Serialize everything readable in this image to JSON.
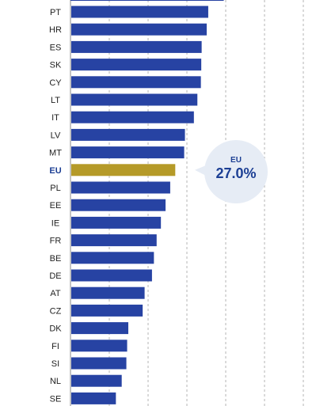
{
  "chart_data": {
    "type": "bar",
    "orientation": "horizontal",
    "categories": [
      "PT",
      "HR",
      "ES",
      "SK",
      "CY",
      "LT",
      "IT",
      "LV",
      "MT",
      "EU",
      "PL",
      "EE",
      "IE",
      "FR",
      "BE",
      "DE",
      "AT",
      "CZ",
      "DK",
      "FI",
      "SI",
      "NL",
      "SE"
    ],
    "values": [
      35.5,
      35.1,
      33.8,
      33.7,
      33.6,
      32.7,
      31.8,
      29.5,
      29.3,
      27.0,
      25.7,
      24.5,
      23.3,
      22.2,
      21.5,
      21.0,
      19.1,
      18.6,
      14.9,
      14.6,
      14.4,
      13.2,
      11.7
    ],
    "highlight": "EU",
    "xlim": [
      0,
      60
    ],
    "grid": true,
    "partial_bar_top_value": 39.5,
    "callout": {
      "title": "EU",
      "value_text": "27.0%"
    },
    "colors": {
      "bar": "#2743a3",
      "highlight": "#b59a28",
      "grid": "#b5b5b5",
      "callout_bg": "#e6ecf5",
      "callout_text": "#1c3f94"
    }
  }
}
